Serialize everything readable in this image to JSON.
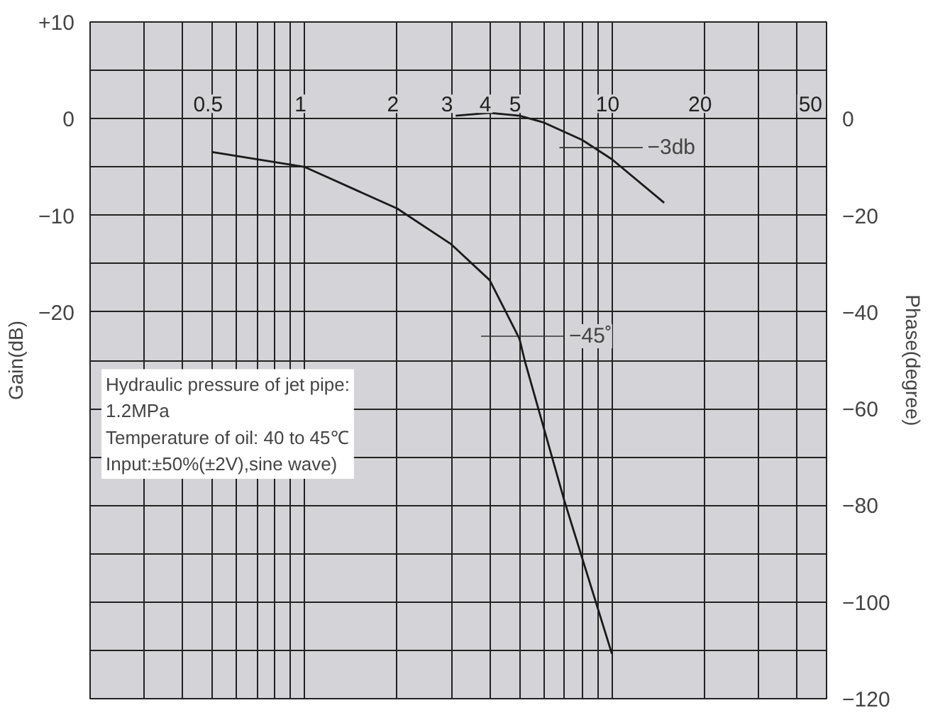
{
  "chart_data": {
    "type": "line",
    "ylabel": "Gain(dB)",
    "y2label": "Phase(degree)",
    "xlim": [
      0.2,
      50
    ],
    "xticks": [
      {
        "value": 0.2,
        "label": null
      },
      {
        "value": 0.3,
        "label": null
      },
      {
        "value": 0.4,
        "label": null
      },
      0.5,
      {
        "value": 0.6,
        "label": null
      },
      {
        "value": 0.7,
        "label": null
      },
      {
        "value": 0.8,
        "label": null
      },
      {
        "value": 0.9,
        "label": null
      },
      1,
      2,
      3,
      4,
      5,
      {
        "value": 6,
        "label": null
      },
      {
        "value": 7,
        "label": null
      },
      {
        "value": 8,
        "label": null
      },
      {
        "value": 9,
        "label": null
      },
      10,
      20,
      {
        "value": 30,
        "label": null
      },
      {
        "value": 40,
        "label": null
      },
      50
    ],
    "log": "x",
    "ylim": [
      -60,
      10
    ],
    "yticks": [
      {
        "value": 10,
        "label": "+10"
      },
      {
        "value": 5,
        "label": null
      },
      0,
      {
        "value": -5,
        "label": null
      },
      {
        "value": -10,
        "label": "−10"
      },
      {
        "value": -15,
        "label": null
      },
      {
        "value": -20,
        "label": "−20"
      },
      {
        "value": -25,
        "label": null
      },
      {
        "value": -30,
        "label": null
      },
      {
        "value": -35,
        "label": null
      },
      {
        "value": -40,
        "label": null
      },
      {
        "value": -45,
        "label": null
      },
      {
        "value": -50,
        "label": null
      },
      {
        "value": -55,
        "label": null
      },
      {
        "value": -60,
        "label": null
      }
    ],
    "y2lim": [
      -120,
      20
    ],
    "y2ticks": [
      0,
      {
        "value": -20,
        "label": "−20"
      },
      {
        "value": -40,
        "label": "−40"
      },
      {
        "value": -60,
        "label": "−60"
      },
      {
        "value": -80,
        "label": "−80"
      },
      {
        "value": -100,
        "label": "−100"
      },
      {
        "value": -120,
        "label": "−120"
      }
    ],
    "grid": true,
    "marker": "none",
    "line_style": "solid",
    "series": [
      {
        "color": "#1a1a1a",
        "x": [
          3.1,
          4,
          5,
          6,
          8,
          10,
          14.8
        ],
        "values": [
          0.3,
          0.6,
          0.3,
          -0.4,
          -2.2,
          -4.2,
          -8.7
        ]
      },
      {
        "color": "#1a1a1a",
        "axis": "y2",
        "x": [
          0.5,
          1,
          2,
          3,
          4,
          5,
          5.2,
          7,
          10
        ],
        "values": [
          -6.9,
          -10,
          -18.6,
          -26,
          -33.4,
          -45.5,
          -50,
          -79,
          -110.7
        ]
      }
    ],
    "annotations": [
      {
        "text": "−3db",
        "x": 9,
        "y": -3
      },
      {
        "text": "−45˚",
        "x": 5,
        "y": -22.5
      },
      "Hydraulic pressure of jet pipe:\n1.2MPa\nTemperature of oil: 40 to 45℃\nInput:±50%(±2V),sine wave)"
    ]
  }
}
